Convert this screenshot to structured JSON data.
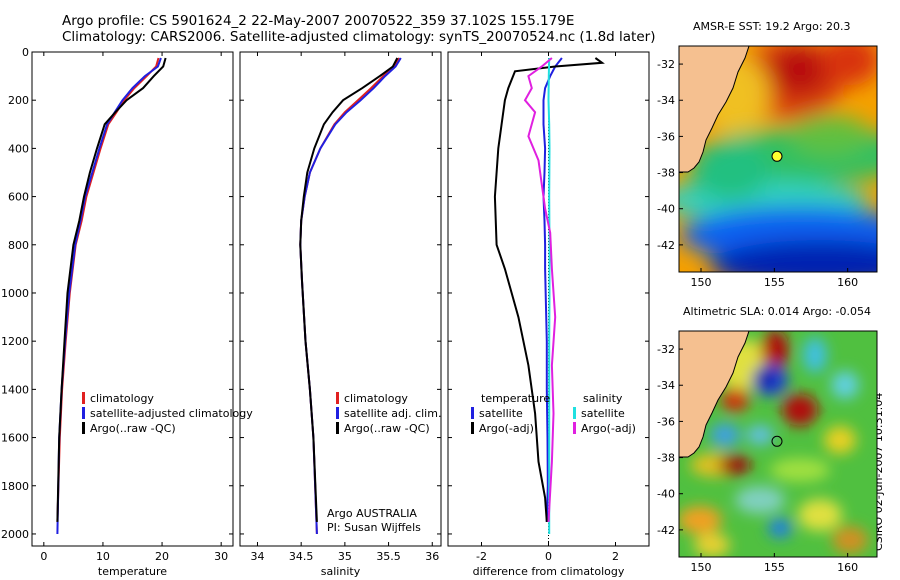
{
  "titles": {
    "line1": "Argo profile: CS 5901624_2 22-May-2007 20070522_359 37.102S 155.179E",
    "line2": "Climatology: CARS2006. Satellite-adjusted climatology: synTS_20070524.nc (1.8d later)"
  },
  "stamp": "CSIRO 02-Jun-2007 10:31:04",
  "chart_data": [
    {
      "type": "line",
      "id": "temperature",
      "xlabel": "temperature",
      "ylabel": "",
      "xlim": [
        -2,
        32
      ],
      "ylim": [
        2050,
        0
      ],
      "xticks": [
        0,
        10,
        20,
        30
      ],
      "yticks": [
        0,
        200,
        400,
        600,
        800,
        1000,
        1200,
        1400,
        1600,
        1800,
        2000
      ],
      "legend_entries": [
        "climatology",
        "satellite-adjusted climatology",
        "Argo(..raw -QC)"
      ],
      "series": [
        {
          "name": "climatology",
          "color": "#e02020",
          "x": [
            19.4,
            19.0,
            17.4,
            15.3,
            13.6,
            12.3,
            10.9,
            9.6,
            8.4,
            7.2,
            6.4,
            5.4,
            4.4,
            3.7,
            3.1,
            2.7,
            2.3
          ],
          "y": [
            25,
            60,
            100,
            150,
            200,
            250,
            300,
            400,
            500,
            600,
            700,
            800,
            1000,
            1200,
            1400,
            1600,
            1950
          ]
        },
        {
          "name": "satellite-adjusted climatology",
          "color": "#2020e0",
          "x": [
            19.8,
            19.3,
            17.1,
            15.0,
            13.3,
            12.0,
            10.7,
            9.4,
            8.2,
            7.0,
            6.2,
            5.3,
            4.3,
            3.6,
            3.0,
            2.6,
            2.3
          ],
          "y": [
            25,
            60,
            100,
            150,
            200,
            250,
            300,
            400,
            500,
            600,
            700,
            800,
            1000,
            1200,
            1400,
            1600,
            2000
          ]
        },
        {
          "name": "Argo(..raw -QC)",
          "color": "#000000",
          "x": [
            20.6,
            20.2,
            18.6,
            16.8,
            14.0,
            12.1,
            10.3,
            9.0,
            7.8,
            6.8,
            6.0,
            5.0,
            4.0,
            3.5,
            3.0,
            2.6,
            2.3
          ],
          "y": [
            25,
            60,
            100,
            150,
            200,
            250,
            300,
            400,
            500,
            600,
            700,
            800,
            1000,
            1200,
            1400,
            1600,
            1950
          ]
        }
      ]
    },
    {
      "type": "line",
      "id": "salinity",
      "xlabel": "salinity",
      "ylabel": "",
      "xlim": [
        33.8,
        36.1
      ],
      "ylim": [
        2050,
        0
      ],
      "xticks": [
        34,
        34.5,
        35,
        35.5,
        36
      ],
      "yticks": [
        0,
        200,
        400,
        600,
        800,
        1000,
        1200,
        1400,
        1600,
        1800,
        2000
      ],
      "legend_entries": [
        "climatology",
        "satellite adj. clim.",
        "Argo(..raw -QC)"
      ],
      "annotation": [
        "Argo AUSTRALIA",
        "PI: Susan Wijffels"
      ],
      "series": [
        {
          "name": "climatology",
          "color": "#e02020",
          "x": [
            35.62,
            35.56,
            35.44,
            35.3,
            35.15,
            35.0,
            34.88,
            34.72,
            34.6,
            34.54,
            34.5,
            34.49,
            34.51,
            34.55,
            34.6,
            34.64,
            34.68
          ],
          "y": [
            25,
            60,
            100,
            150,
            200,
            250,
            300,
            400,
            500,
            600,
            700,
            800,
            950,
            1200,
            1400,
            1600,
            2000
          ]
        },
        {
          "name": "satellite adj. clim.",
          "color": "#2020e0",
          "x": [
            35.64,
            35.58,
            35.46,
            35.33,
            35.18,
            35.02,
            34.89,
            34.72,
            34.6,
            34.54,
            34.5,
            34.49,
            34.51,
            34.55,
            34.6,
            34.64,
            34.68
          ],
          "y": [
            25,
            60,
            100,
            150,
            200,
            250,
            300,
            400,
            500,
            600,
            700,
            800,
            950,
            1200,
            1400,
            1600,
            2000
          ]
        },
        {
          "name": "Argo(..raw -QC)",
          "color": "#000000",
          "x": [
            35.6,
            35.55,
            35.4,
            35.2,
            34.98,
            34.86,
            34.76,
            34.65,
            34.57,
            34.53,
            34.5,
            34.49,
            34.51,
            34.55,
            34.6,
            34.64,
            34.68
          ],
          "y": [
            25,
            60,
            100,
            150,
            200,
            250,
            300,
            400,
            500,
            600,
            700,
            800,
            950,
            1200,
            1400,
            1600,
            1950
          ]
        }
      ]
    },
    {
      "type": "line",
      "id": "difference",
      "xlabel": "difference from climatology",
      "ylabel": "",
      "xlim": [
        -3,
        3
      ],
      "ylim": [
        2050,
        0
      ],
      "xticks": [
        -2,
        0,
        2
      ],
      "yticks": [
        0,
        200,
        400,
        600,
        800,
        1000,
        1200,
        1400,
        1600,
        1800,
        2000
      ],
      "legend_left": [
        "temperature",
        "satellite",
        "Argo(-adj)"
      ],
      "legend_right": [
        "salinity",
        "satellite",
        "Argo(-adj)"
      ],
      "series": [
        {
          "name": "temperature satellite",
          "color": "#2020e0",
          "x": [
            0.4,
            0.2,
            0.05,
            -0.1,
            -0.15,
            -0.15,
            -0.1,
            -0.12,
            -0.15,
            -0.12,
            -0.1,
            -0.1,
            -0.05,
            -0.05,
            -0.03,
            -0.02,
            -0.05
          ],
          "y": [
            25,
            60,
            100,
            150,
            200,
            300,
            400,
            500,
            600,
            700,
            800,
            900,
            1200,
            1400,
            1600,
            1800,
            1950
          ]
        },
        {
          "name": "temperature Argo(-adj)",
          "color": "#000000",
          "x": [
            1.4,
            1.6,
            0.2,
            -1.0,
            -1.2,
            -1.3,
            -1.4,
            -1.5,
            -1.6,
            -1.55,
            -1.3,
            -0.9,
            -0.6,
            -0.4,
            -0.3,
            -0.1,
            -0.05
          ],
          "y": [
            25,
            45,
            60,
            80,
            150,
            200,
            300,
            400,
            600,
            800,
            900,
            1100,
            1300,
            1500,
            1700,
            1850,
            1950
          ]
        },
        {
          "name": "salinity satellite",
          "color": "#20e0e0",
          "x": [
            0.02,
            0.01,
            0.0,
            0.02,
            0.03,
            0.02,
            0.03,
            0.03,
            0.02,
            0.02,
            0.02,
            0.02,
            0.02
          ],
          "y": [
            25,
            100,
            200,
            300,
            400,
            600,
            800,
            1000,
            1200,
            1400,
            1600,
            1800,
            2000
          ]
        },
        {
          "name": "salinity Argo(-adj)",
          "color": "#e020e0",
          "x": [
            0.1,
            -0.2,
            -0.6,
            -0.5,
            -0.7,
            -0.4,
            -0.6,
            -0.3,
            -0.2,
            -0.1,
            0.05,
            0.1,
            0.2,
            0.1,
            0.15,
            0.1,
            0.0
          ],
          "y": [
            25,
            60,
            100,
            150,
            200,
            250,
            350,
            450,
            550,
            650,
            750,
            900,
            1100,
            1300,
            1500,
            1700,
            1950
          ]
        }
      ]
    },
    {
      "type": "heatmap",
      "id": "sst-map",
      "title": "AMSR-E SST: 19.2  Argo: 20.3",
      "xlim": [
        148.5,
        162
      ],
      "ylim": [
        -43.5,
        -31
      ],
      "xticks": [
        150,
        155,
        160
      ],
      "yticks": [
        -32,
        -34,
        -36,
        -38,
        -40,
        -42
      ],
      "profile_location": {
        "lon": 155.179,
        "lat": -37.102
      }
    },
    {
      "type": "heatmap",
      "id": "sla-map",
      "title": "Altimetric SLA: 0.014  Argo: -0.054",
      "xlim": [
        148.5,
        162
      ],
      "ylim": [
        -43.5,
        -31
      ],
      "xticks": [
        150,
        155,
        160
      ],
      "yticks": [
        -32,
        -34,
        -36,
        -38,
        -40,
        -42
      ],
      "profile_location": {
        "lon": 155.179,
        "lat": -37.102
      }
    }
  ]
}
